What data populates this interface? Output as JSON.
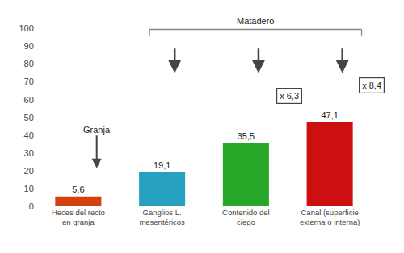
{
  "chart_data": {
    "type": "bar",
    "categories": [
      "Heces del recto\nen granja",
      "Ganglios L.\nmesentéricos",
      "Contenido del\nciego",
      "Canal (superficie\nexterna o interna)"
    ],
    "values": [
      5.6,
      19.1,
      35.5,
      47.1
    ],
    "value_labels": [
      "5,6",
      "19,1",
      "35,5",
      "47,1"
    ],
    "data_labels": true,
    "colors": [
      "#d44010",
      "#28a0c0",
      "#28a828",
      "#cc1010"
    ],
    "ylim": [
      0,
      107
    ],
    "yticks": [
      0,
      10,
      20,
      30,
      40,
      50,
      60,
      70,
      80,
      90,
      100
    ],
    "grid": false,
    "annotations": [
      "Granja",
      "Matadero",
      "x 6,3",
      "x 8,4"
    ]
  }
}
